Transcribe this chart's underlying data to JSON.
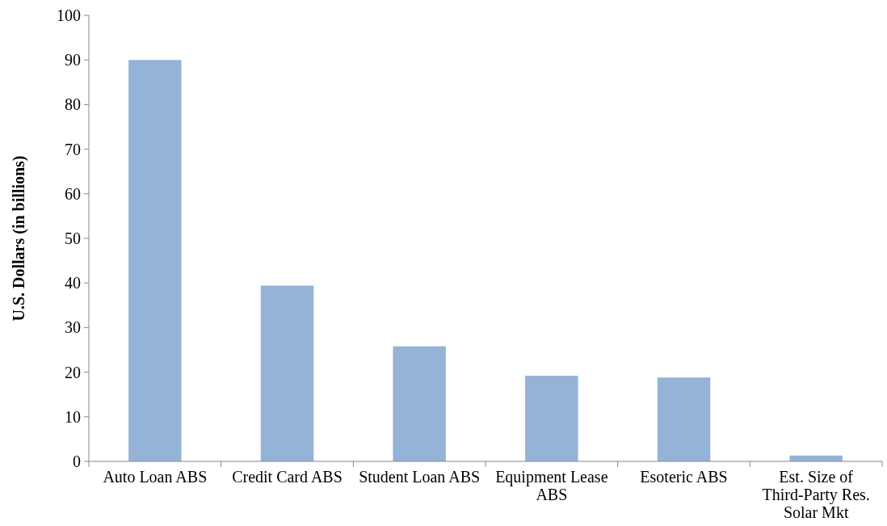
{
  "chart_data": {
    "type": "bar",
    "ylabel": "U.S. Dollars (in billions)",
    "categories": [
      "Auto Loan ABS",
      "Credit Card ABS",
      "Student Loan ABS",
      "Equipment Lease ABS",
      "Esoteric ABS",
      "Est. Size of Third-Party Res. Solar Mkt"
    ],
    "values": [
      90,
      39.4,
      25.8,
      19.2,
      18.8,
      1.3
    ],
    "color": "#95b3d7",
    "ylim": [
      0,
      100
    ],
    "yticks": [
      0,
      10,
      20,
      30,
      40,
      50,
      60,
      70,
      80,
      90,
      100
    ],
    "grid": false
  }
}
